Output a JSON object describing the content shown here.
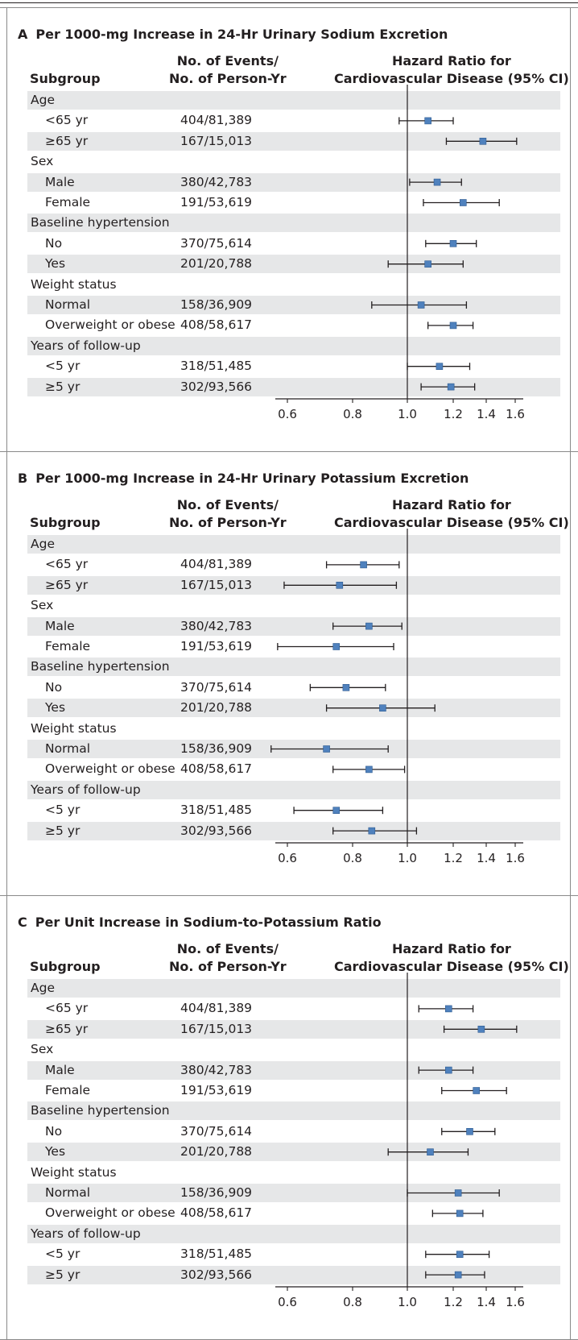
{
  "colors": {
    "marker": "#4f81bd",
    "band": "#e6e7e8",
    "text": "#231f20"
  },
  "chart_data": [
    {
      "type": "forest",
      "panel_letter": "A",
      "title": "Per 1000-mg Increase in 24-Hr Urinary Sodium Excretion",
      "col_subgroup": "Subgroup",
      "col_events": [
        "No. of Events/",
        "No. of Person-Yr"
      ],
      "col_hr": [
        "Hazard Ratio for",
        "Cardiovascular Disease (95% CI)"
      ],
      "xticks": [
        "0.6",
        "0.8",
        "1.0",
        "1.2",
        "1.4",
        "1.6"
      ],
      "xlim": [
        0.55,
        1.62
      ],
      "reference_line": 1.0,
      "rows": [
        {
          "label": "Age",
          "header": true
        },
        {
          "label": "<65 yr",
          "events": "404/81,389",
          "hr": 1.09,
          "lo": 0.97,
          "hi": 1.2
        },
        {
          "label": "≥65 yr",
          "events": "167/15,013",
          "hr": 1.38,
          "lo": 1.17,
          "hi": 1.61
        },
        {
          "label": "Sex",
          "header": true
        },
        {
          "label": "Male",
          "events": "380/42,783",
          "hr": 1.13,
          "lo": 1.01,
          "hi": 1.25
        },
        {
          "label": "Female",
          "events": "191/53,619",
          "hr": 1.26,
          "lo": 1.07,
          "hi": 1.49
        },
        {
          "label": "Baseline hypertension",
          "header": true
        },
        {
          "label": "No",
          "events": "370/75,614",
          "hr": 1.2,
          "lo": 1.08,
          "hi": 1.34
        },
        {
          "label": "Yes",
          "events": "201/20,788",
          "hr": 1.09,
          "lo": 0.93,
          "hi": 1.26
        },
        {
          "label": "Weight status",
          "header": true
        },
        {
          "label": "Normal",
          "events": "158/36,909",
          "hr": 1.06,
          "lo": 0.87,
          "hi": 1.28
        },
        {
          "label": "Overweight or obese",
          "events": "408/58,617",
          "hr": 1.2,
          "lo": 1.09,
          "hi": 1.32
        },
        {
          "label": "Years of follow-up",
          "header": true
        },
        {
          "label": "<5 yr",
          "events": "318/51,485",
          "hr": 1.14,
          "lo": 1.0,
          "hi": 1.3
        },
        {
          "label": "≥5 yr",
          "events": "302/93,566",
          "hr": 1.19,
          "lo": 1.06,
          "hi": 1.33
        }
      ]
    },
    {
      "type": "forest",
      "panel_letter": "B",
      "title": "Per 1000-mg Increase in 24-Hr Urinary Potassium Excretion",
      "col_subgroup": "Subgroup",
      "col_events": [
        "No. of Events/",
        "No. of Person-Yr"
      ],
      "col_hr": [
        "Hazard Ratio for",
        "Cardiovascular Disease (95% CI)"
      ],
      "xticks": [
        "0.6",
        "0.8",
        "1.0",
        "1.2",
        "1.4",
        "1.6"
      ],
      "xlim": [
        0.55,
        1.62
      ],
      "reference_line": 1.0,
      "rows": [
        {
          "label": "Age",
          "header": true
        },
        {
          "label": "<65 yr",
          "events": "404/81,389",
          "hr": 0.84,
          "lo": 0.72,
          "hi": 0.97
        },
        {
          "label": "≥65 yr",
          "events": "167/15,013",
          "hr": 0.76,
          "lo": 0.59,
          "hi": 0.96
        },
        {
          "label": "Sex",
          "header": true
        },
        {
          "label": "Male",
          "events": "380/42,783",
          "hr": 0.86,
          "lo": 0.74,
          "hi": 0.98
        },
        {
          "label": "Female",
          "events": "191/53,619",
          "hr": 0.75,
          "lo": 0.57,
          "hi": 0.95
        },
        {
          "label": "Baseline hypertension",
          "header": true
        },
        {
          "label": "No",
          "events": "370/75,614",
          "hr": 0.78,
          "lo": 0.67,
          "hi": 0.92
        },
        {
          "label": "Yes",
          "events": "201/20,788",
          "hr": 0.91,
          "lo": 0.72,
          "hi": 1.12
        },
        {
          "label": "Weight status",
          "header": true
        },
        {
          "label": "Normal",
          "events": "158/36,909",
          "hr": 0.72,
          "lo": 0.55,
          "hi": 0.93
        },
        {
          "label": "Overweight or obese",
          "events": "408/58,617",
          "hr": 0.86,
          "lo": 0.74,
          "hi": 0.99
        },
        {
          "label": "Years of follow-up",
          "header": true
        },
        {
          "label": "<5 yr",
          "events": "318/51,485",
          "hr": 0.75,
          "lo": 0.62,
          "hi": 0.91
        },
        {
          "label": "≥5 yr",
          "events": "302/93,566",
          "hr": 0.87,
          "lo": 0.74,
          "hi": 1.04
        }
      ]
    },
    {
      "type": "forest",
      "panel_letter": "C",
      "title": "Per Unit Increase in Sodium-to-Potassium Ratio",
      "col_subgroup": "Subgroup",
      "col_events": [
        "No. of Events/",
        "No. of Person-Yr"
      ],
      "col_hr": [
        "Hazard Ratio for",
        "Cardiovascular Disease (95% CI)"
      ],
      "xticks": [
        "0.6",
        "0.8",
        "1.0",
        "1.2",
        "1.4",
        "1.6"
      ],
      "xlim": [
        0.55,
        1.62
      ],
      "reference_line": 1.0,
      "rows": [
        {
          "label": "Age",
          "header": true
        },
        {
          "label": "<65 yr",
          "events": "404/81,389",
          "hr": 1.18,
          "lo": 1.05,
          "hi": 1.32
        },
        {
          "label": "≥65 yr",
          "events": "167/15,013",
          "hr": 1.37,
          "lo": 1.16,
          "hi": 1.61
        },
        {
          "label": "Sex",
          "header": true
        },
        {
          "label": "Male",
          "events": "380/42,783",
          "hr": 1.18,
          "lo": 1.05,
          "hi": 1.32
        },
        {
          "label": "Female",
          "events": "191/53,619",
          "hr": 1.34,
          "lo": 1.15,
          "hi": 1.54
        },
        {
          "label": "Baseline hypertension",
          "header": true
        },
        {
          "label": "No",
          "events": "370/75,614",
          "hr": 1.3,
          "lo": 1.15,
          "hi": 1.46
        },
        {
          "label": "Yes",
          "events": "201/20,788",
          "hr": 1.1,
          "lo": 0.93,
          "hi": 1.29
        },
        {
          "label": "Weight status",
          "header": true
        },
        {
          "label": "Normal",
          "events": "158/36,909",
          "hr": 1.23,
          "lo": 1.0,
          "hi": 1.49
        },
        {
          "label": "Overweight or obese",
          "events": "408/58,617",
          "hr": 1.24,
          "lo": 1.11,
          "hi": 1.38
        },
        {
          "label": "Years of follow-up",
          "header": true
        },
        {
          "label": "<5 yr",
          "events": "318/51,485",
          "hr": 1.24,
          "lo": 1.08,
          "hi": 1.42
        },
        {
          "label": "≥5 yr",
          "events": "302/93,566",
          "hr": 1.23,
          "lo": 1.08,
          "hi": 1.39
        }
      ]
    }
  ]
}
